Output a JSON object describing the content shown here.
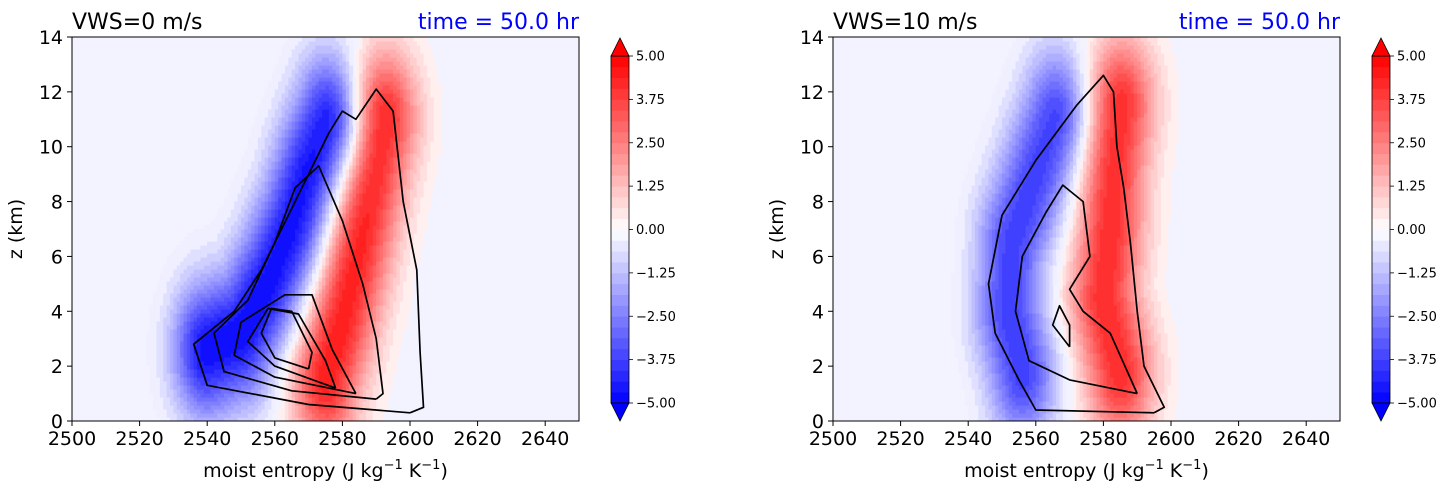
{
  "chart_data": [
    {
      "type": "heatmap",
      "title": "VWS=0 m/s",
      "title_right": "time = 50.0 hr",
      "title_right_color": "#0000ff",
      "xlabel_main": "moist entropy (J kg",
      "xlabel_sup1": "−1",
      "xlabel_mid": " K",
      "xlabel_sup2": "−1",
      "xlabel_end": ")",
      "ylabel": "z (km)",
      "xlim": [
        2500,
        2650
      ],
      "ylim": [
        0,
        14
      ],
      "xticks": [
        "2500",
        "2520",
        "2540",
        "2560",
        "2580",
        "2600",
        "2620",
        "2640"
      ],
      "yticks": [
        "0",
        "2",
        "4",
        "6",
        "8",
        "10",
        "12",
        "14"
      ],
      "colorbar": {
        "range": [
          -5,
          5
        ],
        "ticks": [
          "5.00",
          "3.75",
          "2.50",
          "1.25",
          "0.00",
          "−1.25",
          "−2.50",
          "−3.75",
          "−5.00"
        ],
        "extend": "both",
        "colormap": "bwr",
        "background": "#f3f3ff"
      },
      "fields": [
        {
          "sign": "negative",
          "peak": 4.8,
          "ridge": [
            [
              2540,
              2.6
            ],
            [
              2550,
              3.2
            ],
            [
              2558,
              5.0
            ],
            [
              2565,
              7.0
            ],
            [
              2570,
              9.0
            ],
            [
              2576,
              10.8
            ]
          ]
        },
        {
          "sign": "positive",
          "peak": 4.5,
          "ridge": [
            [
              2575,
              1.6
            ],
            [
              2580,
              3.8
            ],
            [
              2584,
              6.0
            ],
            [
              2588,
              8.5
            ],
            [
              2592,
              11.0
            ]
          ]
        }
      ],
      "contours": [
        [
          [
            2600,
            0.3
          ],
          [
            2570,
            0.6
          ],
          [
            2540,
            1.3
          ],
          [
            2536,
            2.8
          ],
          [
            2548,
            4.0
          ],
          [
            2556,
            5.5
          ],
          [
            2566,
            8.0
          ],
          [
            2576,
            10.5
          ],
          [
            2580,
            11.3
          ],
          [
            2584,
            11.0
          ],
          [
            2590,
            12.1
          ],
          [
            2595,
            11.3
          ],
          [
            2598,
            8.0
          ],
          [
            2602,
            5.5
          ],
          [
            2603,
            2.5
          ],
          [
            2604,
            0.5
          ],
          [
            2600,
            0.3
          ]
        ],
        [
          [
            2590,
            0.8
          ],
          [
            2565,
            1.1
          ],
          [
            2545,
            1.8
          ],
          [
            2542,
            3.2
          ],
          [
            2552,
            4.4
          ],
          [
            2560,
            6.5
          ],
          [
            2566,
            8.5
          ],
          [
            2573,
            9.3
          ],
          [
            2580,
            7.3
          ],
          [
            2586,
            5.0
          ],
          [
            2590,
            3.0
          ],
          [
            2592,
            1.0
          ],
          [
            2590,
            0.8
          ]
        ],
        [
          [
            2584,
            1.0
          ],
          [
            2560,
            1.6
          ],
          [
            2548,
            2.4
          ],
          [
            2550,
            3.6
          ],
          [
            2563,
            4.6
          ],
          [
            2571,
            4.6
          ],
          [
            2577,
            2.6
          ],
          [
            2584,
            1.0
          ]
        ],
        [
          [
            2578,
            1.2
          ],
          [
            2560,
            2.0
          ],
          [
            2552,
            2.9
          ],
          [
            2558,
            4.1
          ],
          [
            2567,
            3.9
          ],
          [
            2575,
            2.2
          ],
          [
            2578,
            1.2
          ]
        ],
        [
          [
            2570,
            1.9
          ],
          [
            2560,
            2.3
          ],
          [
            2556,
            3.2
          ],
          [
            2559,
            4.1
          ],
          [
            2565,
            4.0
          ],
          [
            2571,
            2.5
          ],
          [
            2570,
            1.9
          ]
        ]
      ]
    },
    {
      "type": "heatmap",
      "title": "VWS=10 m/s",
      "title_right": "time = 50.0 hr",
      "title_right_color": "#0000ff",
      "xlabel_main": "moist entropy (J kg",
      "xlabel_sup1": "−1",
      "xlabel_mid": " K",
      "xlabel_sup2": "−1",
      "xlabel_end": ")",
      "ylabel": "z (km)",
      "xlim": [
        2500,
        2650
      ],
      "ylim": [
        0,
        14
      ],
      "xticks": [
        "2500",
        "2520",
        "2540",
        "2560",
        "2580",
        "2600",
        "2620",
        "2640"
      ],
      "yticks": [
        "0",
        "2",
        "4",
        "6",
        "8",
        "10",
        "12",
        "14"
      ],
      "colorbar": {
        "range": [
          -5,
          5
        ],
        "ticks": [
          "5.00",
          "3.75",
          "2.50",
          "1.25",
          "0.00",
          "−1.25",
          "−2.50",
          "−3.75",
          "−5.00"
        ],
        "extend": "both",
        "colormap": "bwr",
        "background": "#f3f3ff"
      },
      "fields": [
        {
          "sign": "negative",
          "peak": 3.8,
          "ridge": [
            [
              2556,
              1.8
            ],
            [
              2552,
              4.0
            ],
            [
              2553,
              6.5
            ],
            [
              2560,
              9.0
            ],
            [
              2566,
              11.0
            ]
          ]
        },
        {
          "sign": "positive",
          "peak": 4.2,
          "ridge": [
            [
              2585,
              1.8
            ],
            [
              2580,
              4.5
            ],
            [
              2582,
              7.0
            ],
            [
              2583,
              9.5
            ],
            [
              2585,
              11.5
            ]
          ]
        }
      ],
      "contours": [
        [
          [
            2595,
            0.3
          ],
          [
            2560,
            0.4
          ],
          [
            2555,
            1.5
          ],
          [
            2548,
            3.2
          ],
          [
            2546,
            5.0
          ],
          [
            2550,
            7.5
          ],
          [
            2560,
            9.5
          ],
          [
            2572,
            11.5
          ],
          [
            2580,
            12.6
          ],
          [
            2583,
            12.0
          ],
          [
            2584,
            10.0
          ],
          [
            2586,
            8.5
          ],
          [
            2588,
            6.5
          ],
          [
            2590,
            4.0
          ],
          [
            2592,
            2.0
          ],
          [
            2598,
            0.5
          ],
          [
            2595,
            0.3
          ]
        ],
        [
          [
            2590,
            1.0
          ],
          [
            2570,
            1.5
          ],
          [
            2558,
            2.2
          ],
          [
            2554,
            4.0
          ],
          [
            2556,
            6.0
          ],
          [
            2563,
            7.6
          ],
          [
            2568,
            8.6
          ],
          [
            2574,
            8.0
          ],
          [
            2576,
            6.0
          ],
          [
            2570,
            4.8
          ],
          [
            2574,
            4.0
          ],
          [
            2582,
            3.2
          ],
          [
            2590,
            1.0
          ]
        ],
        [
          [
            2570,
            2.7
          ],
          [
            2565,
            3.5
          ],
          [
            2567,
            4.2
          ],
          [
            2570,
            3.5
          ],
          [
            2570,
            2.7
          ]
        ]
      ]
    }
  ]
}
